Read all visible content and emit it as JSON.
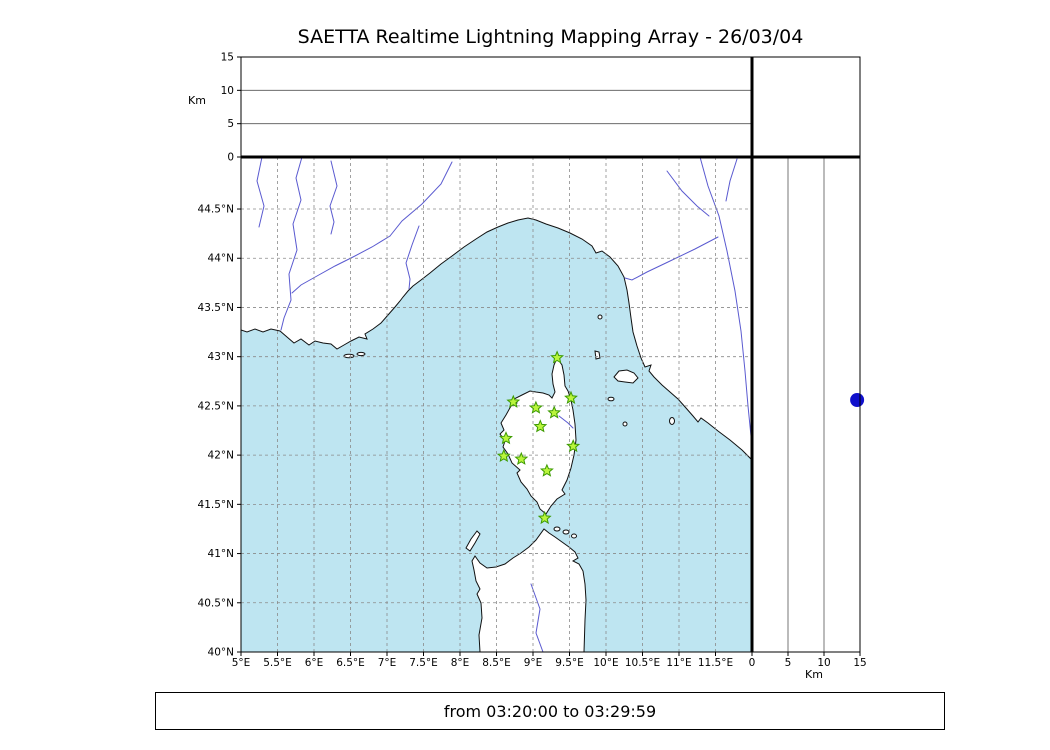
{
  "title": "SAETTA Realtime Lightning Mapping Array - 26/03/04",
  "status_text": "from 03:20:00 to 03:29:59",
  "colors": {
    "sea": "#bee5f1",
    "land": "#ffffff",
    "coastline": "#111111",
    "river": "#5a5ad0",
    "grid": "#8a8a8a",
    "panel_line": "#555555",
    "station_fill": "#baf53c",
    "station_edge": "#3c9a00",
    "event_point": "#1010cc"
  },
  "axes": {
    "km_axis_label_left": "Km",
    "km_axis_label_bottom": "Km",
    "km_ticks": [
      "0",
      "5",
      "10",
      "15"
    ],
    "lon_ticks": [
      "5°E",
      "5.5°E",
      "6°E",
      "6.5°E",
      "7°E",
      "7.5°E",
      "8°E",
      "8.5°E",
      "9°E",
      "9.5°E",
      "10°E",
      "10.5°E",
      "11°E",
      "11.5°E"
    ],
    "lat_ticks": [
      "40°N",
      "40.5°N",
      "41°N",
      "41.5°N",
      "42°N",
      "42.5°N",
      "43°N",
      "43.5°N",
      "44°N",
      "44.5°N"
    ]
  },
  "chart_data": {
    "type": "scatter",
    "title": "SAETTA Realtime Lightning Mapping Array - 26/03/04",
    "time_window": "from 03:20:00 to 03:29:59",
    "grid": true,
    "panels": [
      {
        "name": "altitude_vs_longitude",
        "ylabel": "Km",
        "ylim": [
          0,
          15
        ],
        "xlim": [
          5,
          12
        ],
        "yticks": [
          0,
          5,
          10,
          15
        ],
        "points": []
      },
      {
        "name": "map_lon_lat",
        "region": "Corsica / Ligurian and Tyrrhenian Sea",
        "xlim": [
          5,
          12
        ],
        "ylim": [
          40,
          45
        ],
        "tick_step_deg": 0.5,
        "stations_lon_lat": [
          [
            9.33,
            42.99
          ],
          [
            8.73,
            42.54
          ],
          [
            9.04,
            42.48
          ],
          [
            9.29,
            42.43
          ],
          [
            9.52,
            42.58
          ],
          [
            9.1,
            42.29
          ],
          [
            8.63,
            42.17
          ],
          [
            9.55,
            42.09
          ],
          [
            8.6,
            41.99
          ],
          [
            8.84,
            41.96
          ],
          [
            9.19,
            41.84
          ],
          [
            9.16,
            41.36
          ]
        ],
        "points": []
      },
      {
        "name": "altitude_vs_latitude",
        "xlabel": "Km",
        "xlim": [
          0,
          15
        ],
        "ylim": [
          40,
          45
        ],
        "xticks": [
          0,
          5,
          10,
          15
        ],
        "points": [
          {
            "km": 14.6,
            "lat": 42.56
          }
        ]
      },
      {
        "name": "histogram_box",
        "points": []
      }
    ]
  }
}
